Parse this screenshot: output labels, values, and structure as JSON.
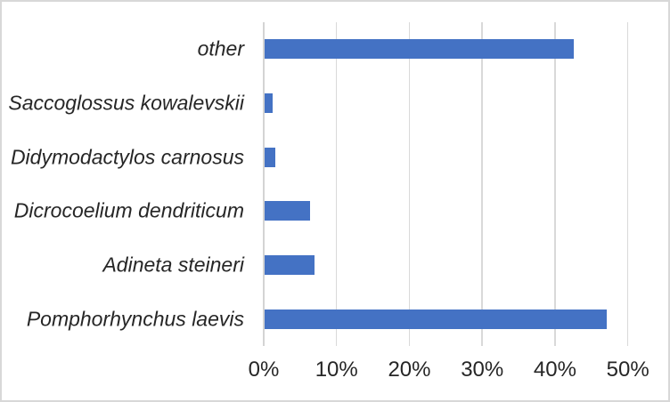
{
  "chart_data": {
    "type": "bar",
    "orientation": "horizontal",
    "title": "",
    "xlabel": "",
    "ylabel": "",
    "categories": [
      "other",
      "Saccoglossus kowalevskii",
      "Didymodactylos carnosus",
      "Dicrocoelium dendriticum",
      "Adineta steineri",
      "Pomphorhynchus laevis"
    ],
    "values": [
      42.5,
      1.1,
      1.5,
      6.2,
      6.9,
      47.0
    ],
    "unit": "%",
    "xlim": [
      0,
      50
    ],
    "x_ticks": [
      "0%",
      "10%",
      "20%",
      "30%",
      "40%",
      "50%"
    ],
    "x_tick_values": [
      0,
      10,
      20,
      30,
      40,
      50
    ],
    "grid": true,
    "legend": "none",
    "category_label_style": "italic",
    "colors": {
      "bar": "#4472C4",
      "gridline": "#D9D9D9",
      "axis_line": "#D4D4D4",
      "text": "#262626",
      "border": "#D8D8D8",
      "background": "#FFFFFF"
    }
  }
}
